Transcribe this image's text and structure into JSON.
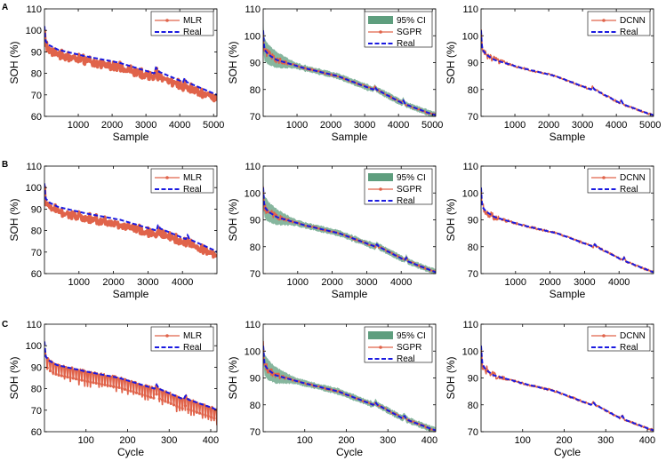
{
  "figure": {
    "row_labels": [
      "A",
      "B",
      "C"
    ],
    "colors": {
      "predicted": "#e0634a",
      "real": "#1a1ae0",
      "ci": "#5e9e7e",
      "axis": "#000000"
    }
  },
  "chart_data": [
    {
      "panel": "A-left",
      "row": "A",
      "type": "line",
      "xlabel": "Sample",
      "ylabel": "SOH (%)",
      "xlim": [
        0,
        5100
      ],
      "ylim": [
        60,
        110
      ],
      "xticks": [
        1000,
        2000,
        3000,
        4000,
        5000
      ],
      "yticks": [
        60,
        70,
        80,
        90,
        100,
        110
      ],
      "legend": [
        "MLR",
        "Real"
      ],
      "has_ci": false,
      "pred_label": "MLR",
      "real_label": "Real",
      "noise": "wide",
      "real": {
        "x": [
          0,
          30,
          150,
          400,
          1200,
          2200,
          3250,
          3300,
          3350,
          4100,
          4150,
          4200,
          4950,
          5100
        ],
        "y": [
          102,
          95,
          93,
          91,
          88,
          85,
          80,
          83,
          81,
          76,
          78,
          76,
          71,
          70
        ]
      }
    },
    {
      "panel": "A-mid",
      "row": "A",
      "type": "line",
      "xlabel": "Sample",
      "ylabel": "SOH (%)",
      "xlim": [
        0,
        5100
      ],
      "ylim": [
        70,
        110
      ],
      "xticks": [
        1000,
        2000,
        3000,
        4000,
        5000
      ],
      "yticks": [
        70,
        80,
        90,
        100,
        110
      ],
      "legend": [
        "95% CI",
        "SGPR",
        "Real"
      ],
      "has_ci": true,
      "ci_label": "95% CI",
      "pred_label": "SGPR",
      "real_label": "Real",
      "noise": "tight",
      "real": {
        "x": [
          0,
          30,
          150,
          400,
          1200,
          2200,
          3250,
          3300,
          3350,
          4100,
          4150,
          4200,
          4950,
          5100
        ],
        "y": [
          102,
          95,
          93,
          91,
          88,
          85,
          80,
          81,
          80,
          75,
          76,
          74.5,
          71,
          70.5
        ]
      }
    },
    {
      "panel": "A-right",
      "row": "A",
      "type": "line",
      "xlabel": "Sample",
      "ylabel": "SOH (%)",
      "xlim": [
        0,
        5100
      ],
      "ylim": [
        70,
        110
      ],
      "xticks": [
        1000,
        2000,
        3000,
        4000,
        5000
      ],
      "yticks": [
        70,
        80,
        90,
        100,
        110
      ],
      "legend": [
        "DCNN",
        "Real"
      ],
      "has_ci": false,
      "pred_label": "DCNN",
      "real_label": "Real",
      "noise": "tight",
      "real": {
        "x": [
          0,
          30,
          150,
          400,
          1200,
          2200,
          3250,
          3300,
          3350,
          4100,
          4150,
          4200,
          4950,
          5100
        ],
        "y": [
          102,
          95,
          93,
          91,
          88,
          85,
          80,
          81,
          80,
          75,
          76,
          74.5,
          71,
          70.5
        ]
      }
    },
    {
      "panel": "B-left",
      "row": "B",
      "type": "line",
      "xlabel": "Sample",
      "ylabel": "SOH (%)",
      "xlim": [
        0,
        5000
      ],
      "ylim": [
        60,
        110
      ],
      "xticks": [
        1000,
        2000,
        3000,
        4000
      ],
      "yticks": [
        60,
        70,
        80,
        90,
        100,
        110
      ],
      "legend": [
        "MLR",
        "Real"
      ],
      "has_ci": false,
      "pred_label": "MLR",
      "real_label": "Real",
      "noise": "wide",
      "real": {
        "x": [
          0,
          30,
          150,
          400,
          1200,
          2200,
          3250,
          3300,
          3350,
          4100,
          4150,
          4200,
          4900,
          5000
        ],
        "y": [
          102,
          95,
          93,
          91,
          88,
          85,
          80,
          83,
          81,
          76,
          78,
          76,
          71,
          70
        ]
      }
    },
    {
      "panel": "B-mid",
      "row": "B",
      "type": "line",
      "xlabel": "Sample",
      "ylabel": "SOH (%)",
      "xlim": [
        0,
        5000
      ],
      "ylim": [
        70,
        110
      ],
      "xticks": [
        1000,
        2000,
        3000,
        4000
      ],
      "yticks": [
        70,
        80,
        90,
        100,
        110
      ],
      "legend": [
        "95% CI",
        "SGPR",
        "Real"
      ],
      "has_ci": true,
      "ci_label": "95% CI",
      "pred_label": "SGPR",
      "real_label": "Real",
      "noise": "tight",
      "real": {
        "x": [
          0,
          30,
          150,
          400,
          1200,
          2200,
          3250,
          3300,
          3350,
          4100,
          4150,
          4200,
          4900,
          5000
        ],
        "y": [
          102,
          95,
          93,
          91,
          88,
          85,
          80,
          81,
          80,
          75,
          76,
          74.5,
          71,
          70.5
        ]
      }
    },
    {
      "panel": "B-right",
      "row": "B",
      "type": "line",
      "xlabel": "Sample",
      "ylabel": "SOH (%)",
      "xlim": [
        0,
        5000
      ],
      "ylim": [
        70,
        110
      ],
      "xticks": [
        1000,
        2000,
        3000,
        4000
      ],
      "yticks": [
        70,
        80,
        90,
        100,
        110
      ],
      "legend": [
        "DCNN",
        "Real"
      ],
      "has_ci": false,
      "pred_label": "DCNN",
      "real_label": "Real",
      "noise": "tight",
      "real": {
        "x": [
          0,
          30,
          150,
          400,
          1200,
          2200,
          3250,
          3300,
          3350,
          4100,
          4150,
          4200,
          4900,
          5000
        ],
        "y": [
          102,
          95,
          93,
          91,
          88,
          85,
          80,
          81,
          80,
          75,
          76,
          74.5,
          71,
          70.5
        ]
      }
    },
    {
      "panel": "C-left",
      "row": "C",
      "type": "line",
      "xlabel": "Cycle",
      "ylabel": "SOH (%)",
      "xlim": [
        0,
        415
      ],
      "ylim": [
        60,
        110
      ],
      "xticks": [
        100,
        200,
        300,
        400
      ],
      "yticks": [
        60,
        70,
        80,
        90,
        100,
        110
      ],
      "legend": [
        "MLR",
        "Real"
      ],
      "has_ci": false,
      "pred_label": "MLR",
      "real_label": "Real",
      "noise": "spiky",
      "real": {
        "x": [
          0,
          3,
          12,
          30,
          100,
          180,
          265,
          270,
          275,
          335,
          340,
          345,
          405,
          415
        ],
        "y": [
          102,
          95,
          93,
          91,
          88,
          85,
          80,
          82,
          80,
          75,
          77,
          75,
          71,
          70
        ]
      }
    },
    {
      "panel": "C-mid",
      "row": "C",
      "type": "line",
      "xlabel": "Cycle",
      "ylabel": "SOH (%)",
      "xlim": [
        0,
        415
      ],
      "ylim": [
        70,
        110
      ],
      "xticks": [
        100,
        200,
        300,
        400
      ],
      "yticks": [
        70,
        80,
        90,
        100,
        110
      ],
      "legend": [
        "95% CI",
        "SGPR",
        "Real"
      ],
      "has_ci": true,
      "ci_label": "95% CI",
      "pred_label": "SGPR",
      "real_label": "Real",
      "noise": "tight",
      "real": {
        "x": [
          0,
          3,
          12,
          30,
          100,
          180,
          265,
          270,
          275,
          335,
          340,
          345,
          405,
          415
        ],
        "y": [
          102,
          95,
          93,
          91,
          88,
          85,
          80,
          81,
          80,
          75,
          76,
          74.5,
          71,
          70.5
        ]
      }
    },
    {
      "panel": "C-right",
      "row": "C",
      "type": "line",
      "xlabel": "Cycle",
      "ylabel": "SOH (%)",
      "xlim": [
        0,
        415
      ],
      "ylim": [
        70,
        110
      ],
      "xticks": [
        100,
        200,
        300,
        400
      ],
      "yticks": [
        70,
        80,
        90,
        100,
        110
      ],
      "legend": [
        "DCNN",
        "Real"
      ],
      "has_ci": false,
      "pred_label": "DCNN",
      "real_label": "Real",
      "noise": "tight",
      "real": {
        "x": [
          0,
          3,
          12,
          30,
          100,
          180,
          265,
          270,
          275,
          335,
          340,
          345,
          405,
          415
        ],
        "y": [
          102,
          95,
          93,
          91,
          88,
          85,
          80,
          81,
          80,
          75,
          76,
          74.5,
          71,
          70.5
        ]
      }
    }
  ]
}
